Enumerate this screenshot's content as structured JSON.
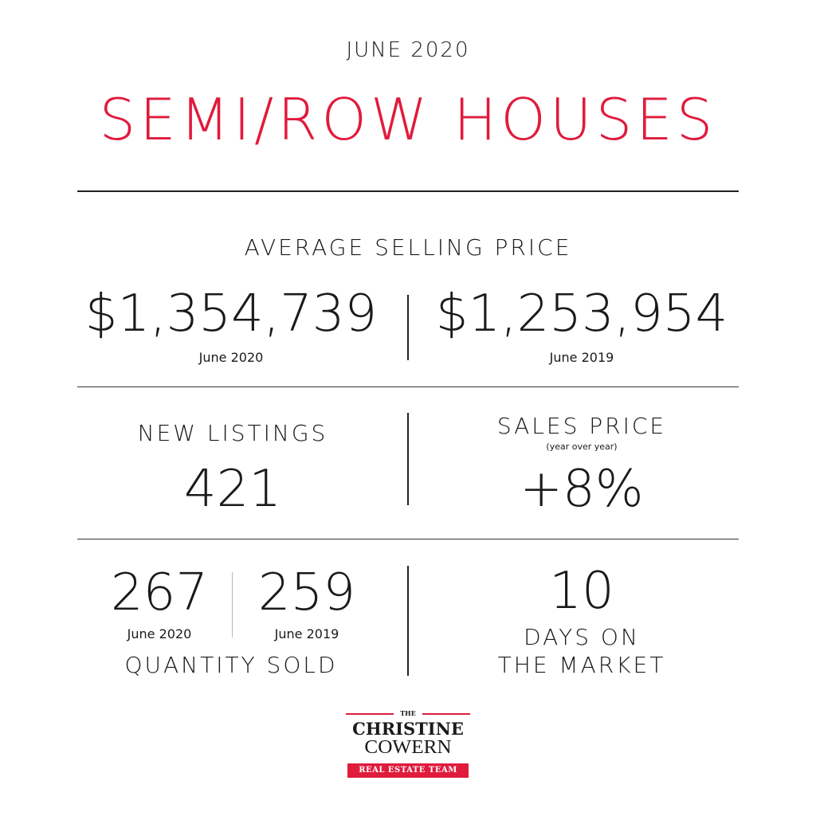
{
  "header": {
    "month": "JUNE 2020",
    "title": "SEMI/ROW HOUSES",
    "title_color": "#e01b3c"
  },
  "avg_price": {
    "label": "AVERAGE SELLING PRICE",
    "current": {
      "value": "$1,354,739",
      "period": "June 2020"
    },
    "previous": {
      "value": "$1,253,954",
      "period": "June 2019"
    }
  },
  "new_listings": {
    "label": "NEW LISTINGS",
    "value": "421"
  },
  "sales_price": {
    "label": "SALES PRICE",
    "sublabel": "(year over year)",
    "value": "+8%"
  },
  "quantity_sold": {
    "label": "QUANTITY SOLD",
    "current": {
      "value": "267",
      "period": "June 2020"
    },
    "previous": {
      "value": "259",
      "period": "June 2019"
    }
  },
  "days_on_market": {
    "value": "10",
    "label_line1": "DAYS ON",
    "label_line2": "THE MARKET"
  },
  "logo": {
    "the": "THE",
    "name_line1": "CHRISTINE",
    "name_line2": "COWERN",
    "tagline": "REAL ESTATE TEAM",
    "accent_color": "#e01b3c"
  }
}
